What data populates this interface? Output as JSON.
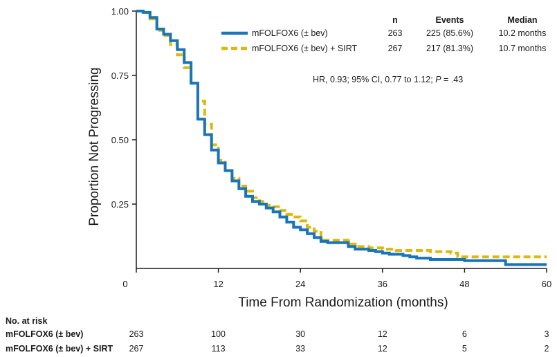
{
  "chart_data": {
    "type": "line",
    "subtype": "kaplan-meier",
    "xlabel": "Time From Randomization (months)",
    "ylabel": "Proportion Not Progressing",
    "xlim": [
      0,
      60
    ],
    "ylim": [
      0,
      1.0
    ],
    "x_ticks": [
      0,
      12,
      24,
      36,
      48,
      60
    ],
    "x_tick_labels": [
      "0",
      "12",
      "24",
      "36",
      "48",
      "60"
    ],
    "y_ticks": [
      0.25,
      0.5,
      0.75,
      1.0
    ],
    "y_tick_labels": [
      "0.25",
      "0.50",
      "0.75",
      "1.00"
    ],
    "grid": false,
    "legend_position": "top-right",
    "legend_headers": {
      "n": "n",
      "events": "Events",
      "median": "Median"
    },
    "annotation": {
      "prefix": "HR, 0.93; 95% CI, 0.77 to 1.12; ",
      "p_label": "P",
      "p_suffix": " = .43"
    },
    "series": [
      {
        "name": "mFOLFOX6 (± bev)",
        "color": "#1a75b8",
        "style": "solid",
        "n": "263",
        "events": "225 (85.6%)",
        "median": "10.2 months",
        "x": [
          0,
          1,
          2,
          3,
          4,
          5,
          6,
          7,
          8,
          9,
          10,
          11,
          12,
          13,
          14,
          15,
          16,
          17,
          18,
          19,
          20,
          21,
          22,
          23,
          24,
          25,
          26,
          27,
          28,
          29,
          30,
          31,
          32,
          33,
          34,
          35,
          36,
          37,
          38,
          39,
          40,
          41,
          42,
          43,
          44,
          45,
          46,
          47,
          48,
          50,
          52,
          54,
          56,
          58,
          60
        ],
        "y": [
          1.0,
          0.995,
          0.975,
          0.93,
          0.91,
          0.885,
          0.85,
          0.8,
          0.72,
          0.58,
          0.52,
          0.46,
          0.41,
          0.38,
          0.34,
          0.31,
          0.28,
          0.26,
          0.25,
          0.235,
          0.22,
          0.2,
          0.18,
          0.16,
          0.15,
          0.135,
          0.12,
          0.105,
          0.1,
          0.1,
          0.1,
          0.085,
          0.075,
          0.075,
          0.07,
          0.065,
          0.06,
          0.055,
          0.055,
          0.05,
          0.045,
          0.04,
          0.04,
          0.035,
          0.035,
          0.035,
          0.035,
          0.035,
          0.03,
          0.03,
          0.03,
          0.015,
          0.015,
          0.015,
          0.015
        ]
      },
      {
        "name": "mFOLFOX6 (± bev) + SIRT",
        "color": "#dbb90e",
        "style": "dashed",
        "n": "267",
        "events": "217 (81.3%)",
        "median": "10.7 months",
        "x": [
          0,
          1,
          2,
          3,
          4,
          5,
          6,
          7,
          8,
          9,
          10,
          11,
          12,
          13,
          14,
          15,
          16,
          17,
          18,
          19,
          20,
          21,
          22,
          23,
          24,
          25,
          26,
          27,
          28,
          29,
          30,
          31,
          32,
          33,
          34,
          35,
          36,
          37,
          38,
          39,
          40,
          41,
          42,
          43,
          44,
          45,
          46,
          47,
          48,
          50,
          52,
          54,
          56,
          58,
          60
        ],
        "y": [
          1.0,
          0.995,
          0.97,
          0.925,
          0.905,
          0.87,
          0.83,
          0.78,
          0.72,
          0.65,
          0.56,
          0.48,
          0.42,
          0.38,
          0.35,
          0.32,
          0.3,
          0.275,
          0.26,
          0.245,
          0.24,
          0.225,
          0.21,
          0.2,
          0.185,
          0.16,
          0.145,
          0.11,
          0.11,
          0.11,
          0.11,
          0.095,
          0.085,
          0.085,
          0.08,
          0.08,
          0.075,
          0.075,
          0.07,
          0.07,
          0.07,
          0.07,
          0.07,
          0.065,
          0.065,
          0.065,
          0.06,
          0.045,
          0.045,
          0.045,
          0.045,
          0.045,
          0.045,
          0.045,
          0.045
        ]
      }
    ]
  },
  "risk_table": {
    "title": "No. at risk",
    "rows": [
      {
        "label": "mFOLFOX6 (± bev)",
        "values": [
          "263",
          "100",
          "30",
          "12",
          "6",
          "3"
        ]
      },
      {
        "label": "mFOLFOX6 (± bev) + SIRT",
        "values": [
          "267",
          "113",
          "33",
          "12",
          "5",
          "2"
        ]
      }
    ]
  }
}
